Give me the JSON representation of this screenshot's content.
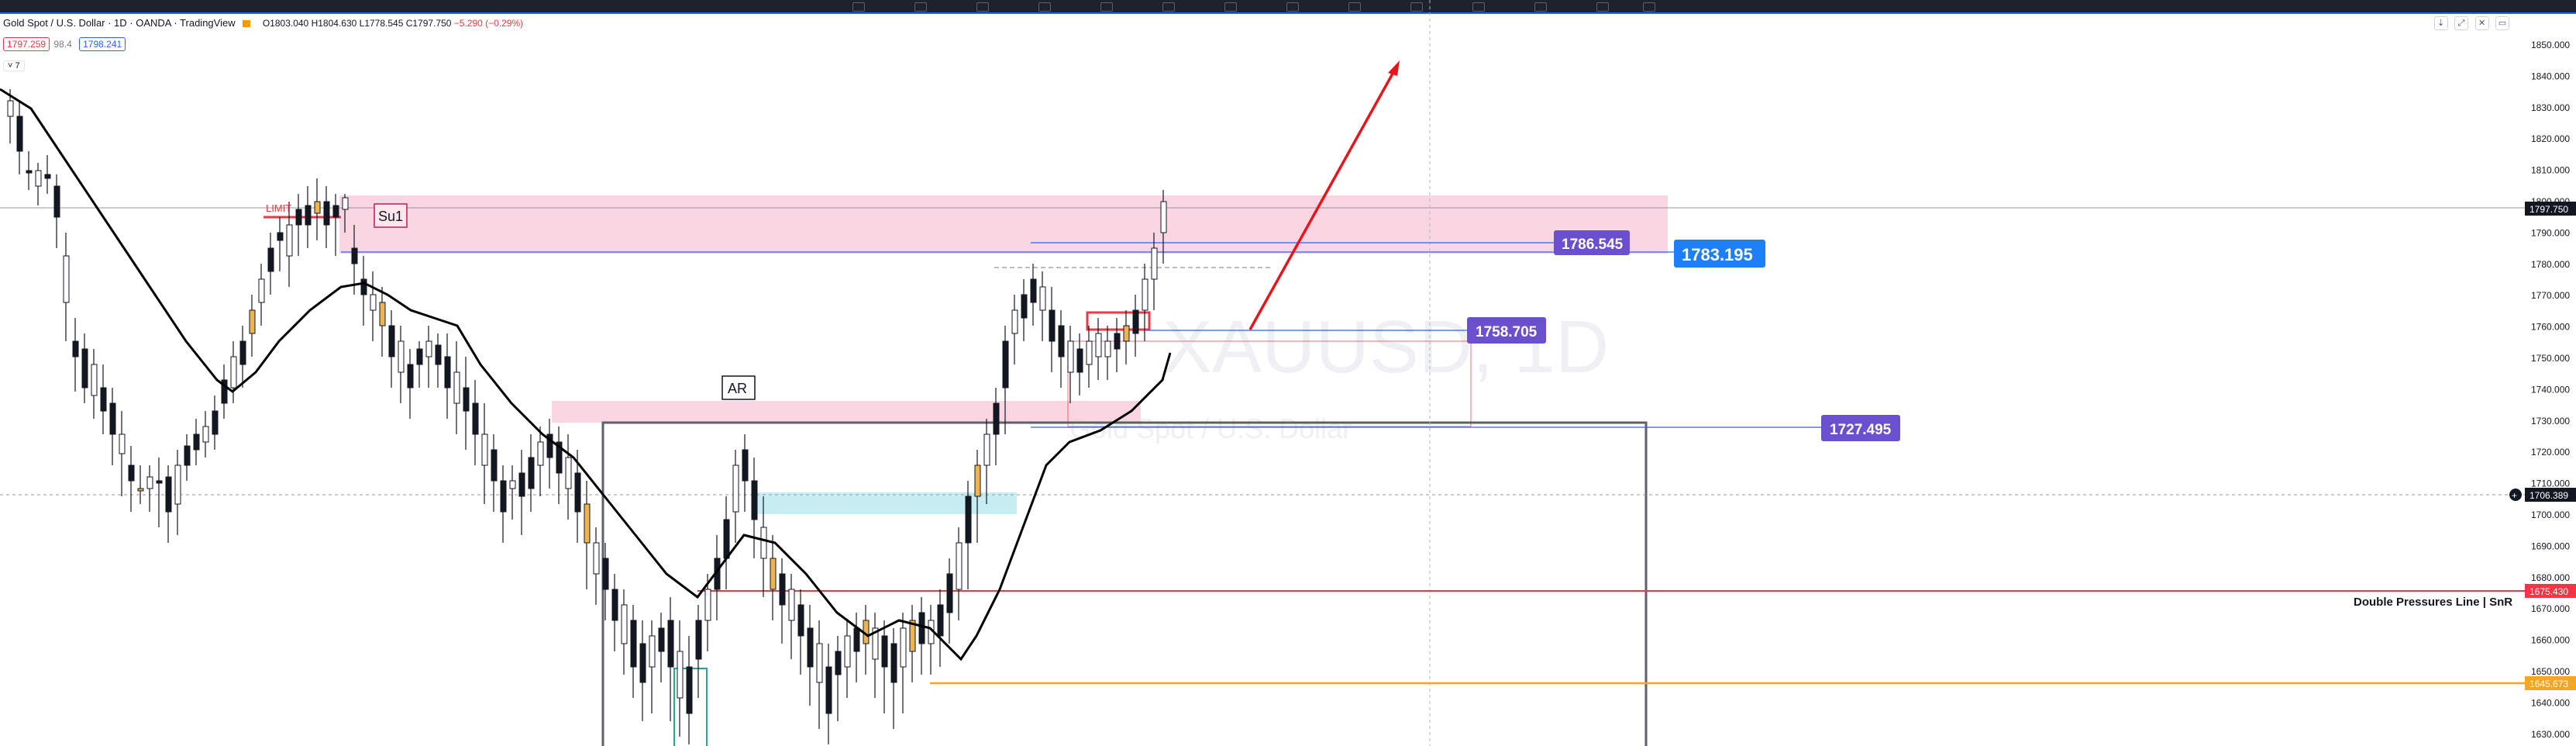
{
  "legend": {
    "symbol": "Gold Spot / U.S. Dollar · 1D · OANDA · TradingView",
    "open": "O1803.040",
    "high": "H1804.630",
    "low": "L1778.545",
    "close": "C1797.750",
    "change": "−5.290 (−0.29%)"
  },
  "trade": {
    "sell": "1797.259",
    "spread": "98.4",
    "buy": "1798.241"
  },
  "collapse_label": "˅ 7",
  "window_controls": [
    "⇣",
    "⤢",
    "✕",
    "▭"
  ],
  "price_axis": {
    "ticks": [
      "1850.000",
      "1840.000",
      "1830.000",
      "1820.000",
      "1810.000",
      "1800.000",
      "1790.000",
      "1780.000",
      "1770.000",
      "1760.000",
      "1750.000",
      "1740.000",
      "1730.000",
      "1720.000",
      "1710.000",
      "1700.000",
      "1690.000",
      "1680.000",
      "1670.000",
      "1660.000",
      "1650.000",
      "1640.000",
      "1630.000"
    ],
    "current_price": "1797.750",
    "crosshair_price": "1706.389",
    "red_line_price": "1675.430",
    "orange_line_price": "1645.673"
  },
  "annotations": {
    "limit_label": "LIMIT",
    "su1_label": "Su1",
    "ar_label": "AR",
    "watermark_symbol": "XAUUSD, 1D",
    "watermark_name": "Gold Spot / U.S. Dollar",
    "double_pressures_label": "Double Pressures Line | SnR",
    "level_1786": "1786.545",
    "level_1783": "1783.195",
    "level_1758": "1758.705",
    "level_1727": "1727.495"
  },
  "colors": {
    "up_candle": "#ffffff",
    "down_candle": "#131722",
    "highlight_candle": "#f0b44c",
    "zone_pink": "#f8c8d8",
    "zone_cyan": "#c6eef2",
    "label_purple": "#6a4fcf",
    "label_blue": "#1e7ef5",
    "resistance_red": "#f23645",
    "support_orange": "#f5a623",
    "arrow_red": "#e8141c"
  }
}
